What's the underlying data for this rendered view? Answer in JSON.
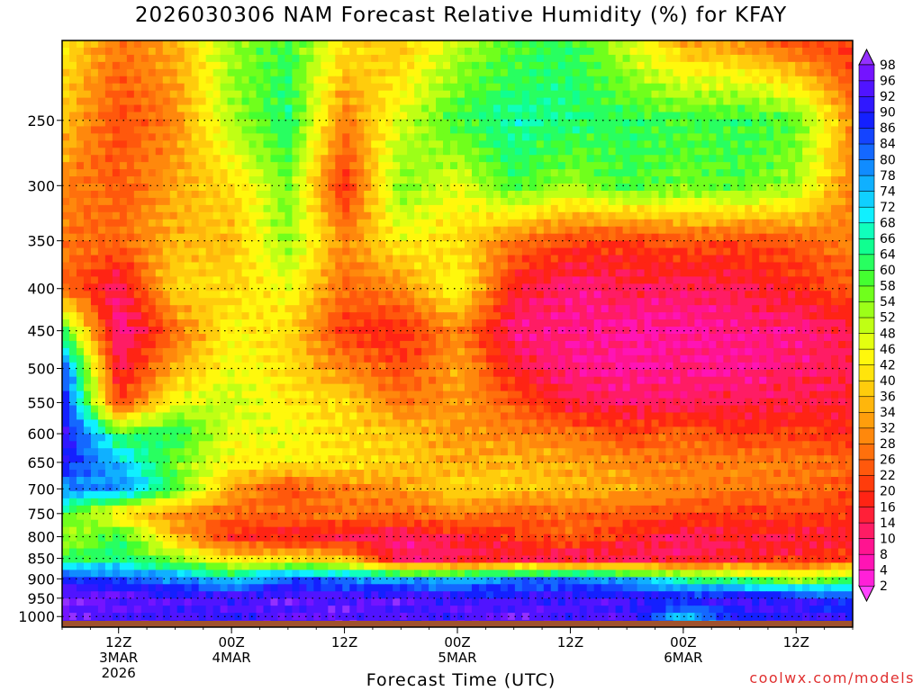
{
  "header": {
    "title": "2026030306 NAM Forecast Relative Humidity (%) for KFAY"
  },
  "footer": {
    "credit": "coolwx.com/models"
  },
  "chart_data": {
    "type": "heatmap",
    "title": "2026030306 NAM Forecast Relative Humidity (%) for KFAY",
    "xlabel": "Forecast Time (UTC)",
    "ylabel": "",
    "init_hour": 6,
    "x_range_hours": [
      6,
      90
    ],
    "y_range_hpa": [
      1030,
      200
    ],
    "y_ticks": [
      250,
      300,
      350,
      400,
      450,
      500,
      550,
      600,
      650,
      700,
      750,
      800,
      850,
      900,
      950,
      1000
    ],
    "x_ticks": [
      {
        "hour": 12,
        "lines": [
          "12Z",
          "3MAR",
          "2026"
        ]
      },
      {
        "hour": 24,
        "lines": [
          "00Z",
          "4MAR"
        ]
      },
      {
        "hour": 36,
        "lines": [
          "12Z"
        ]
      },
      {
        "hour": 48,
        "lines": [
          "00Z",
          "5MAR"
        ]
      },
      {
        "hour": 60,
        "lines": [
          "12Z"
        ]
      },
      {
        "hour": 72,
        "lines": [
          "00Z",
          "6MAR"
        ]
      },
      {
        "hour": 84,
        "lines": [
          "12Z"
        ]
      }
    ],
    "grid": true,
    "ground_pressure_hpa": 1012,
    "colorbar": {
      "placement": "right",
      "levels": [
        2,
        4,
        8,
        10,
        14,
        16,
        20,
        22,
        26,
        28,
        32,
        34,
        36,
        40,
        42,
        46,
        48,
        52,
        54,
        58,
        60,
        64,
        66,
        68,
        72,
        74,
        78,
        80,
        84,
        86,
        90,
        92,
        96,
        98
      ],
      "colors": [
        "#ff44ff",
        "#ff20d8",
        "#ff14b4",
        "#ff1490",
        "#ff1c64",
        "#ff2038",
        "#ff2414",
        "#ff3c0c",
        "#ff580c",
        "#ff700c",
        "#ff880c",
        "#ff9e0c",
        "#ffb60c",
        "#ffcc0c",
        "#ffe40c",
        "#fff80c",
        "#e4ff10",
        "#c0ff14",
        "#9cff18",
        "#70ff1c",
        "#44ff30",
        "#28ff60",
        "#10ff90",
        "#10ffbc",
        "#10f0ff",
        "#10d0ff",
        "#10b0ff",
        "#108cff",
        "#1468ff",
        "#1444ff",
        "#1420ff",
        "#3018ff",
        "#5014ff",
        "#7414ff",
        "#9430ff"
      ]
    },
    "rh_grid_note": "RH values in percent, rows from 200 hPa (top) to 1000 hPa (bottom), columns every 6 forecast hours from hour 6 to hour 90",
    "rh_levels_hpa": [
      200,
      250,
      300,
      350,
      400,
      450,
      500,
      550,
      600,
      650,
      700,
      750,
      800,
      850,
      900,
      950,
      1000
    ],
    "rh_hours": [
      6,
      12,
      18,
      24,
      30,
      36,
      42,
      48,
      54,
      60,
      66,
      72,
      78,
      84,
      90
    ],
    "rh_values": [
      [
        42,
        28,
        34,
        54,
        60,
        42,
        36,
        50,
        58,
        62,
        48,
        34,
        30,
        22,
        18
      ],
      [
        38,
        22,
        30,
        52,
        64,
        28,
        48,
        60,
        66,
        64,
        62,
        60,
        62,
        58,
        30
      ],
      [
        30,
        24,
        34,
        40,
        56,
        18,
        56,
        46,
        60,
        52,
        60,
        56,
        58,
        52,
        28
      ],
      [
        28,
        26,
        36,
        36,
        54,
        30,
        44,
        40,
        28,
        22,
        20,
        24,
        22,
        24,
        30
      ],
      [
        26,
        12,
        40,
        40,
        46,
        26,
        30,
        46,
        16,
        10,
        14,
        12,
        14,
        18,
        24
      ],
      [
        62,
        8,
        26,
        44,
        40,
        20,
        18,
        30,
        10,
        10,
        8,
        8,
        10,
        10,
        14
      ],
      [
        86,
        14,
        34,
        46,
        40,
        30,
        22,
        34,
        16,
        10,
        8,
        10,
        8,
        12,
        14
      ],
      [
        92,
        20,
        46,
        50,
        42,
        40,
        28,
        32,
        24,
        14,
        12,
        12,
        14,
        14,
        16
      ],
      [
        94,
        60,
        64,
        46,
        46,
        40,
        38,
        32,
        30,
        28,
        22,
        26,
        20,
        22,
        18
      ],
      [
        90,
        74,
        56,
        44,
        42,
        42,
        38,
        34,
        36,
        34,
        30,
        28,
        30,
        28,
        26
      ],
      [
        78,
        80,
        60,
        34,
        22,
        28,
        32,
        40,
        38,
        36,
        34,
        30,
        28,
        28,
        22
      ],
      [
        62,
        40,
        30,
        26,
        26,
        28,
        26,
        30,
        24,
        26,
        24,
        22,
        20,
        22,
        20
      ],
      [
        50,
        62,
        36,
        18,
        16,
        14,
        12,
        16,
        20,
        26,
        18,
        12,
        16,
        14,
        16
      ],
      [
        60,
        64,
        54,
        40,
        40,
        36,
        10,
        12,
        14,
        10,
        12,
        12,
        16,
        18,
        20
      ],
      [
        88,
        84,
        80,
        70,
        84,
        80,
        76,
        74,
        80,
        82,
        76,
        64,
        60,
        50,
        60
      ],
      [
        98,
        96,
        94,
        94,
        96,
        94,
        96,
        92,
        92,
        92,
        92,
        90,
        94,
        92,
        84
      ],
      [
        96,
        94,
        92,
        92,
        94,
        96,
        92,
        94,
        96,
        92,
        94,
        74,
        88,
        92,
        90
      ]
    ]
  }
}
